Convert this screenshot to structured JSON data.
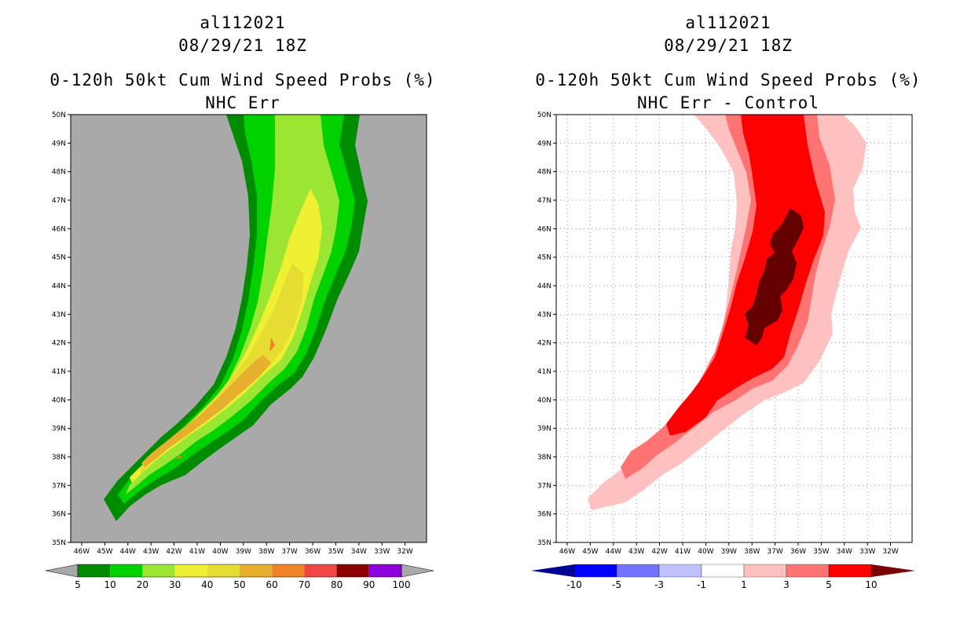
{
  "left": {
    "title": {
      "storm": "al112021",
      "datetime": "08/29/21 18Z",
      "product": "0-120h 50kt Cum Wind Speed Probs (%)",
      "subtitle": "NHC Err"
    },
    "colorbar": {
      "colors": [
        "#008c00",
        "#00d200",
        "#9ae632",
        "#f0f032",
        "#e6dc32",
        "#e6af2d",
        "#f08228",
        "#f04646",
        "#8c0000",
        "#8c00dc"
      ],
      "labels": [
        "5",
        "10",
        "20",
        "30",
        "40",
        "50",
        "60",
        "70",
        "80",
        "90",
        "100"
      ]
    }
  },
  "right": {
    "title": {
      "storm": "al112021",
      "datetime": "08/29/21 18Z",
      "product": "0-120h 50kt Cum Wind Speed Probs (%)",
      "subtitle": "NHC Err - Control"
    },
    "colorbar": {
      "colors": [
        "#0000ff",
        "#7373ff",
        "#c0c0ff",
        "#ffffff",
        "#ffc0c0",
        "#ff7373",
        "#ff0000"
      ],
      "left_arrow_color": "#000096",
      "right_arrow_color": "#780000",
      "labels": [
        "-10",
        "-5",
        "-3",
        "-1",
        "1",
        "3",
        "5",
        "10"
      ]
    }
  },
  "map": {
    "lat_labels": [
      "50N",
      "49N",
      "48N",
      "47N",
      "46N",
      "45N",
      "44N",
      "43N",
      "42N",
      "41N",
      "40N",
      "39N",
      "38N",
      "37N",
      "36N",
      "35N"
    ],
    "lon_labels": [
      "46W",
      "45W",
      "44W",
      "43W",
      "42W",
      "41W",
      "40W",
      "39W",
      "38W",
      "37W",
      "36W",
      "35W",
      "34W",
      "33W",
      "32W"
    ]
  }
}
